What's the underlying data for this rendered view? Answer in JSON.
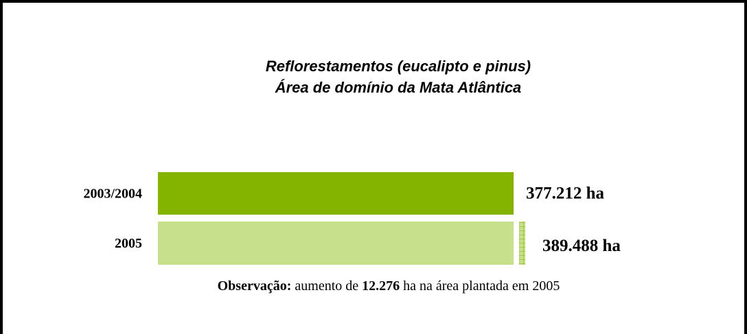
{
  "chart_data": {
    "type": "bar",
    "title": [
      "Reflorestamentos (eucalipto e pinus)",
      "Área de domínio da Mata Atlântica"
    ],
    "categories": [
      "2003/2004",
      "2005"
    ],
    "values": [
      377212,
      389488
    ],
    "value_labels": [
      "377.212 ha",
      "389.488 ha"
    ],
    "colors": [
      "#84b400",
      "#c6e08c"
    ],
    "annotation": [
      {
        "text": "Observação:",
        "bold": true
      },
      {
        "text": " aumento de ",
        "bold": false
      },
      {
        "text": "12.276",
        "bold": true
      },
      {
        "text": " ha na área plantada em 2005",
        "bold": false
      }
    ]
  }
}
